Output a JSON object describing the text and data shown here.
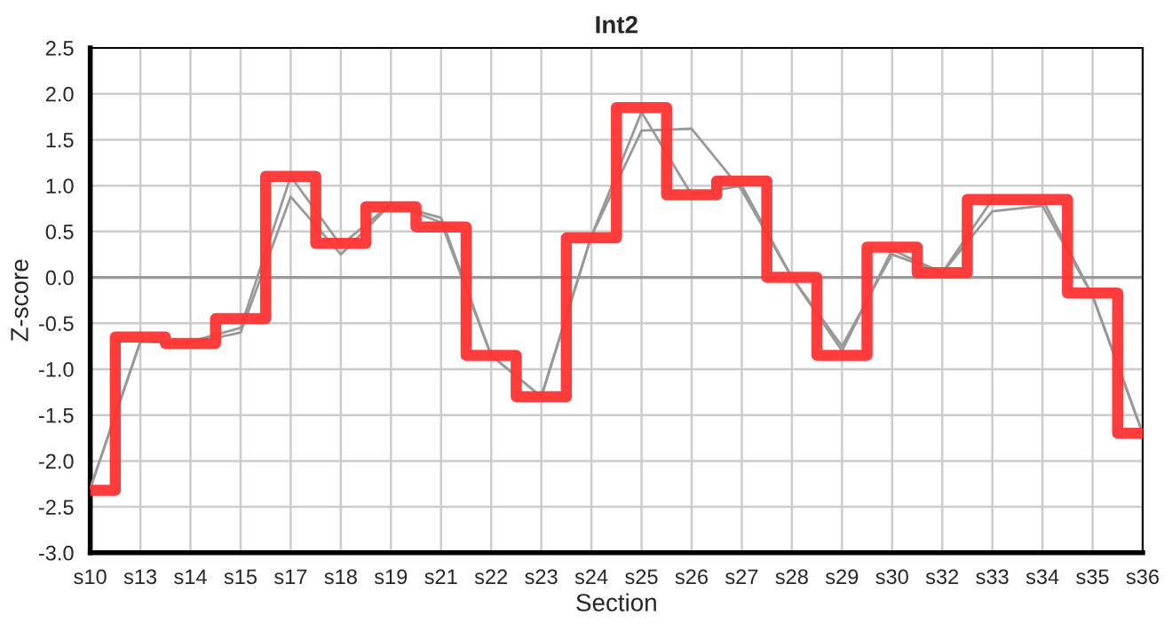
{
  "chart_data": {
    "type": "line",
    "title": "Int2",
    "xlabel": "Section",
    "ylabel": "Z-score",
    "categories": [
      "s10",
      "s13",
      "s14",
      "s15",
      "s17",
      "s18",
      "s19",
      "s21",
      "s22",
      "s23",
      "s24",
      "s25",
      "s26",
      "s27",
      "s28",
      "s29",
      "s30",
      "s32",
      "s33",
      "s34",
      "s35",
      "s36"
    ],
    "series": [
      {
        "color": "#999999",
        "values": [
          -2.3,
          -0.7,
          -0.7,
          -0.55,
          1.1,
          0.35,
          0.8,
          0.6,
          -0.85,
          -1.3,
          0.45,
          1.8,
          0.9,
          1.0,
          0.0,
          -0.8,
          0.3,
          0.05,
          0.85,
          0.85,
          -0.2,
          -1.7
        ]
      },
      {
        "color": "#999999",
        "values": [
          -2.3,
          -0.7,
          -0.72,
          -0.6,
          0.88,
          0.25,
          0.8,
          0.65,
          -0.85,
          -1.3,
          0.45,
          1.6,
          1.62,
          0.95,
          0.0,
          -0.75,
          0.25,
          0.05,
          0.72,
          0.78,
          -0.2,
          -1.7
        ]
      },
      {
        "type": "step",
        "color": "#ff3333",
        "values": [
          -2.32,
          -0.65,
          -0.72,
          -0.45,
          1.1,
          0.37,
          0.77,
          0.55,
          -0.85,
          -1.3,
          0.43,
          1.85,
          0.9,
          1.05,
          0.0,
          -0.85,
          0.33,
          0.05,
          0.85,
          0.85,
          -0.17,
          -1.7
        ]
      }
    ],
    "ylim": [
      -3.0,
      2.5
    ],
    "yticks": [
      {
        "value": -3.0,
        "label": "-3.0"
      },
      {
        "value": -2.5,
        "label": "-2.5"
      },
      {
        "value": -2.0,
        "label": "-2.0"
      },
      {
        "value": -1.5,
        "label": "-1.5"
      },
      {
        "value": -1.0,
        "label": "-1.0"
      },
      {
        "value": -0.5,
        "label": "-0.5"
      },
      {
        "value": 0.0,
        "label": "0.0"
      },
      {
        "value": 0.5,
        "label": "0.5"
      },
      {
        "value": 1.0,
        "label": "1.0"
      },
      {
        "value": 1.5,
        "label": "1.5"
      },
      {
        "value": 2.0,
        "label": "2.0"
      },
      {
        "value": 2.5,
        "label": "2.5"
      }
    ],
    "ref_lines": [
      {
        "axis": "y",
        "value": 0,
        "color": "#999999"
      }
    ],
    "grid": true,
    "legend": false
  }
}
